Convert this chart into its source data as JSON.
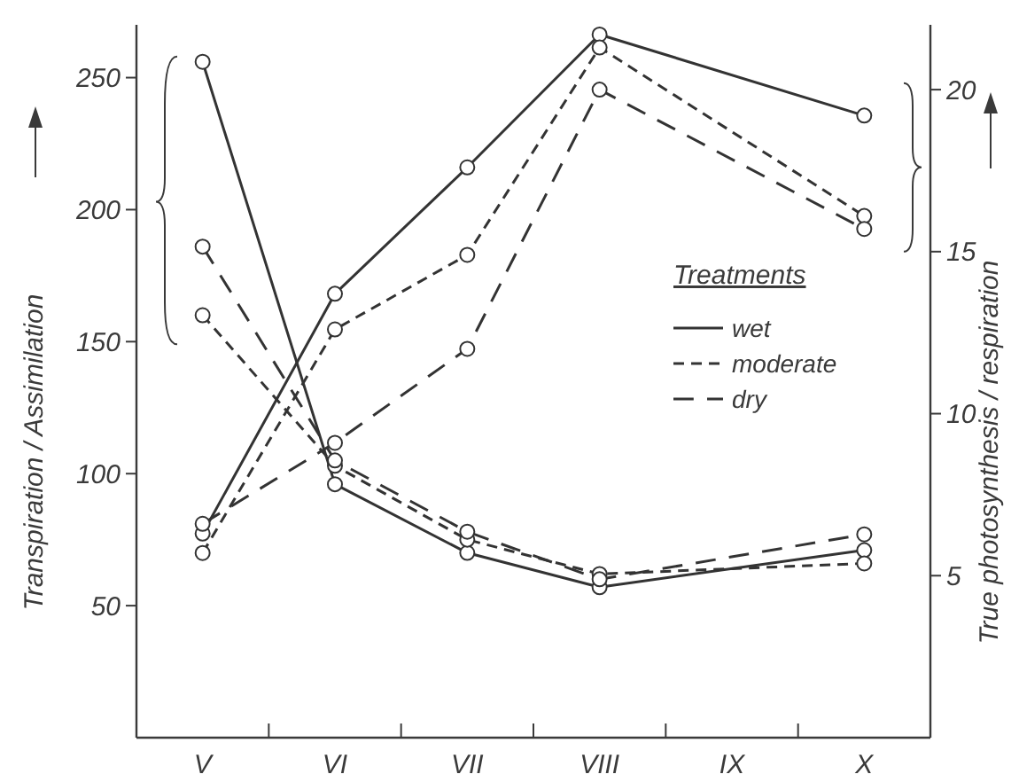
{
  "chart_data": {
    "type": "line",
    "ylabel": "Transpiration / Assimilation",
    "y2label": "True photosynthesis / respiration",
    "legend_title": "Treatments",
    "categories": [
      "V",
      "VI",
      "VII",
      "VIII",
      "IX",
      "X"
    ],
    "ylim": [
      0,
      270
    ],
    "yticks": [
      50,
      100,
      150,
      200,
      250
    ],
    "y2lim": [
      0,
      22
    ],
    "y2ticks": [
      5,
      10,
      15,
      20
    ],
    "series": [
      {
        "name": "wet",
        "color": "#333333",
        "line_style": "solid",
        "values": [
          256,
          96,
          70,
          57,
          null,
          71
        ]
      },
      {
        "name": "moderate",
        "color": "#333333",
        "line_style": "dashed",
        "values": [
          160,
          103,
          75,
          62,
          null,
          66
        ]
      },
      {
        "name": "dry",
        "color": "#333333",
        "line_style": "dashed",
        "values": [
          186,
          105,
          78,
          60,
          null,
          77
        ]
      },
      {
        "color": "#333333",
        "line_style": "solid",
        "axis": "y2",
        "values": [
          6.3,
          13.7,
          17.6,
          21.7,
          null,
          19.2
        ]
      },
      {
        "color": "#333333",
        "line_style": "dashed",
        "axis": "y2",
        "values": [
          5.7,
          12.6,
          14.9,
          21.3,
          null,
          16.1
        ]
      },
      {
        "color": "#333333",
        "line_style": "dashed",
        "axis": "y2",
        "values": [
          6.6,
          9.1,
          12.0,
          20.0,
          null,
          15.7
        ]
      }
    ],
    "marker": "circle",
    "legend": "right",
    "grid": false
  }
}
